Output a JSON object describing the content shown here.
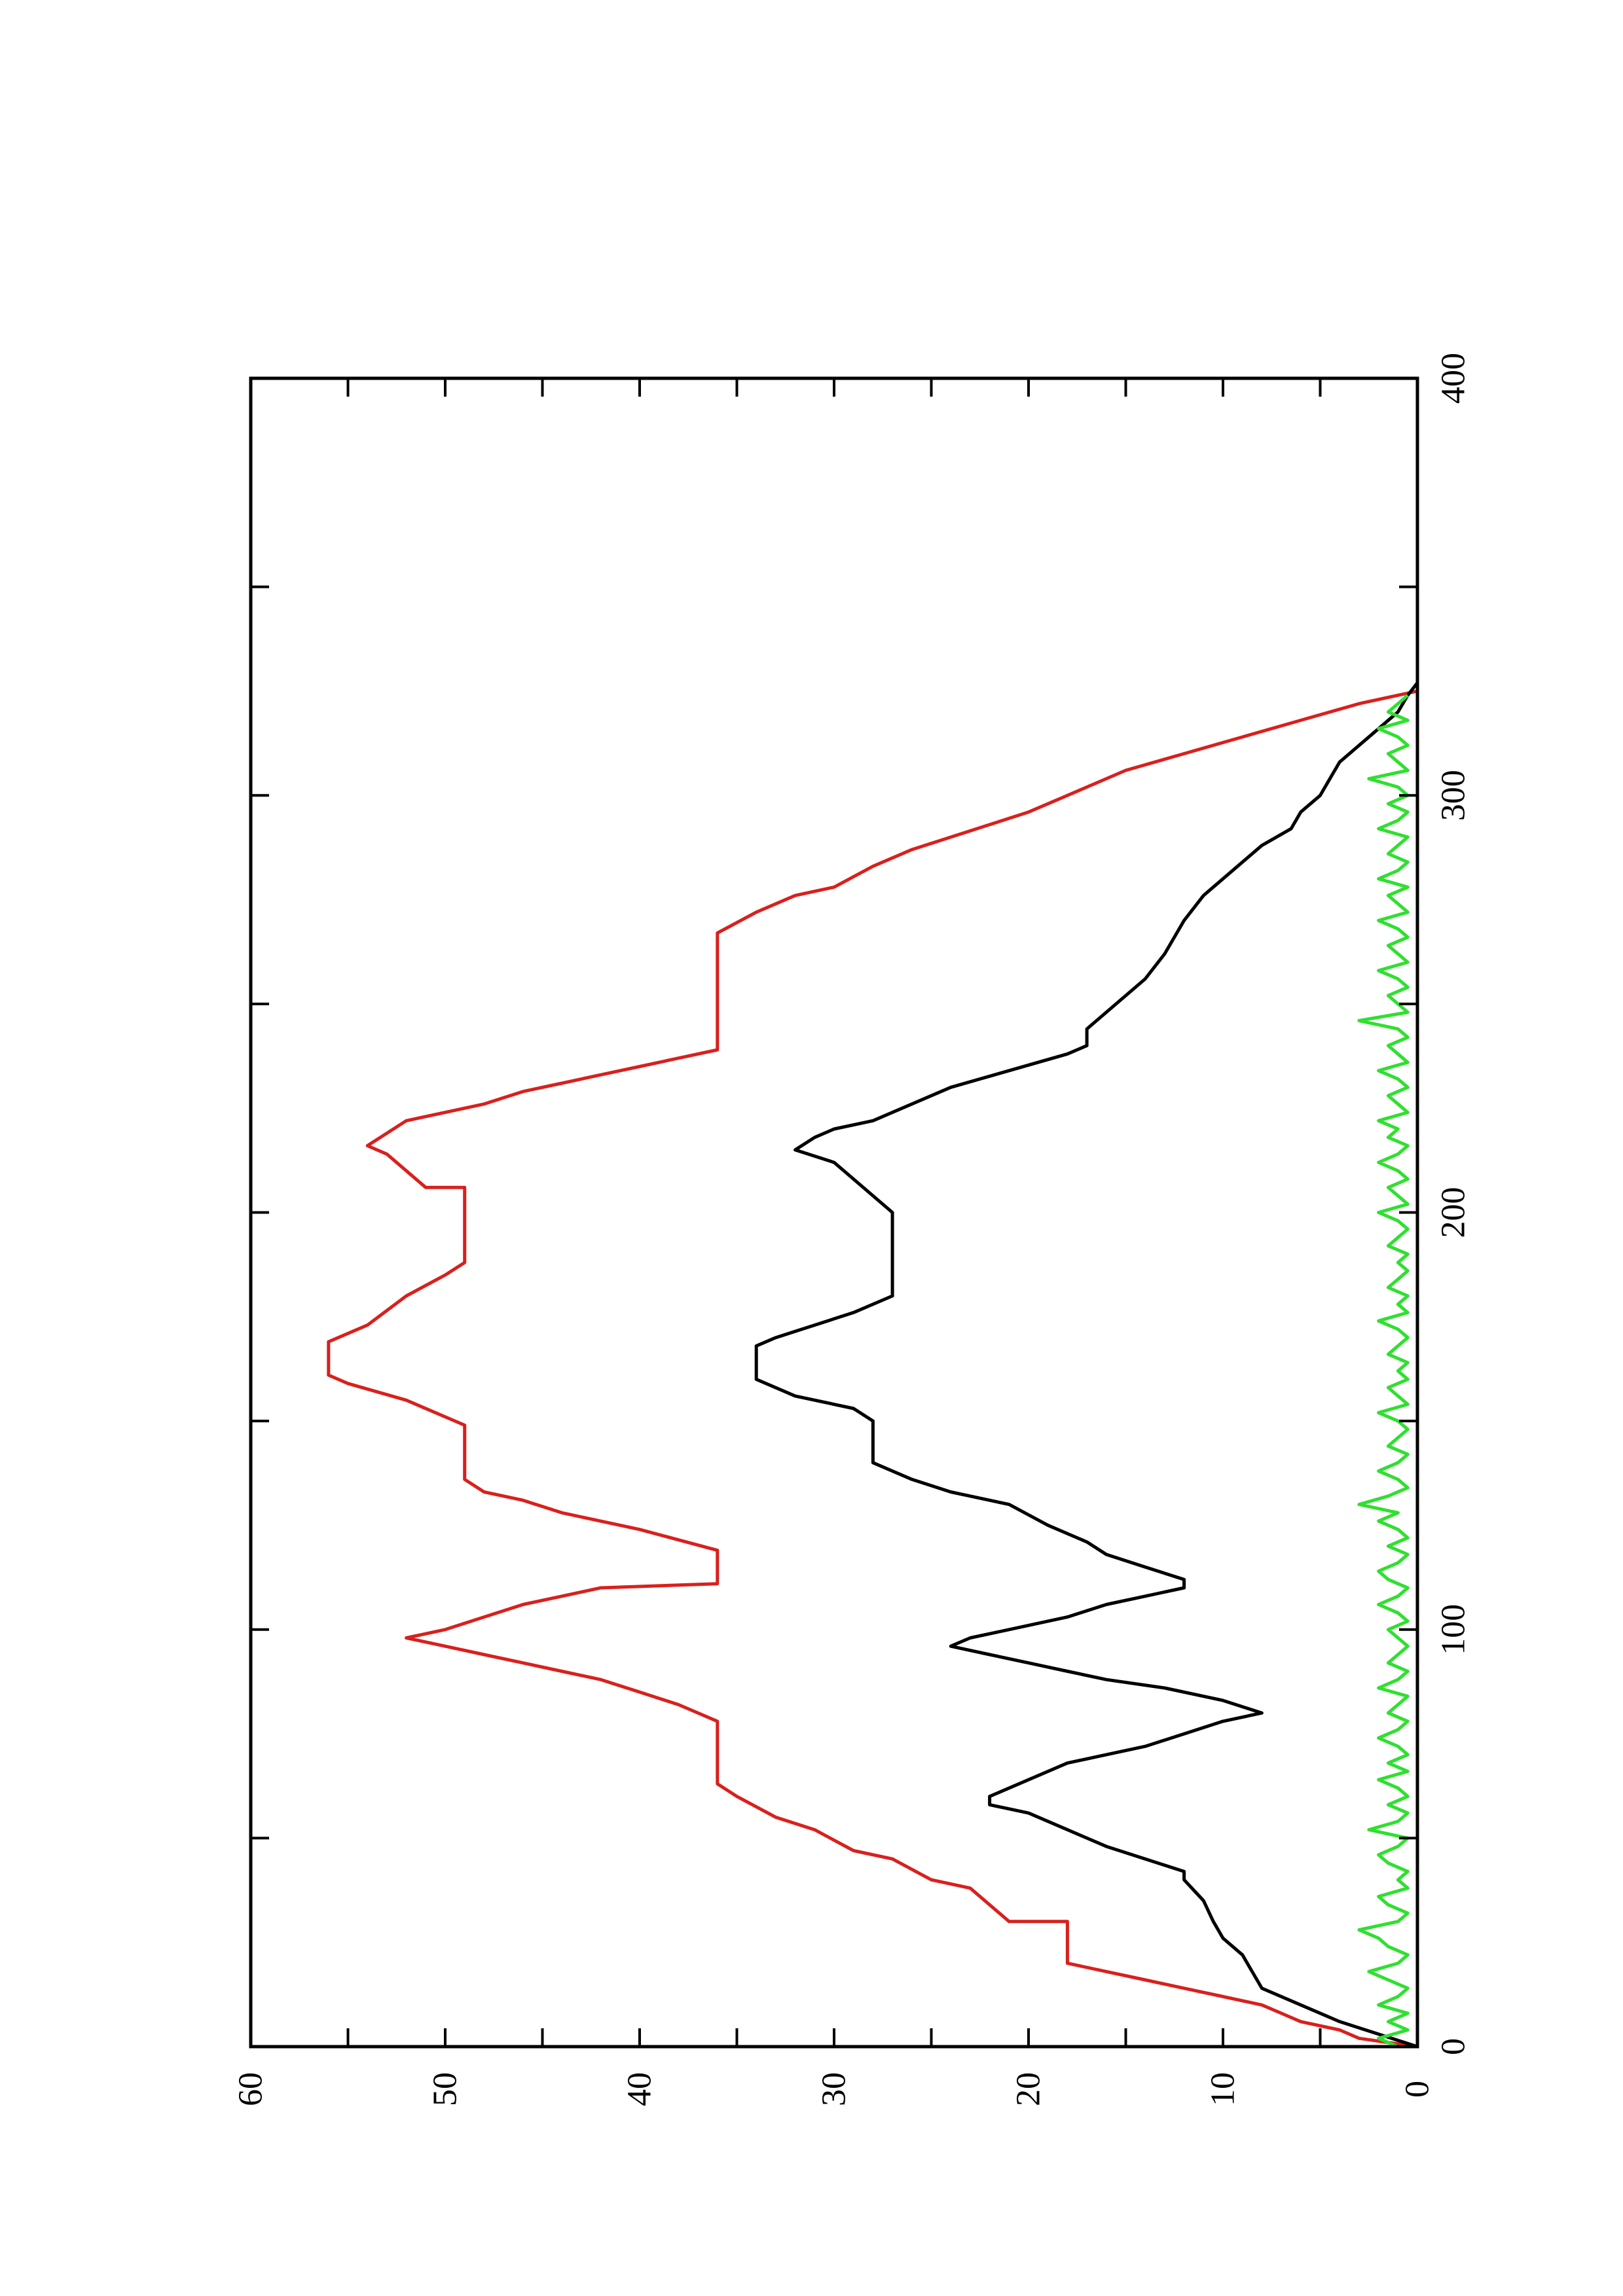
{
  "chart_data": {
    "type": "line",
    "orientation": "rotated-90-ccw",
    "title": "",
    "xlabel": "",
    "ylabel": "",
    "xlim": [
      0,
      400
    ],
    "ylim": [
      0,
      60
    ],
    "xticks": [
      0,
      100,
      200,
      300,
      400
    ],
    "yticks": [
      0,
      10,
      20,
      30,
      40,
      50,
      60
    ],
    "x_minor_step": 50,
    "y_minor_step": 5,
    "grid": false,
    "legend": "none",
    "series": [
      {
        "color": "#d9201d",
        "x": [
          0,
          2,
          4,
          6,
          8,
          10,
          12,
          14,
          16,
          18,
          20,
          22,
          22,
          30,
          30,
          38,
          40,
          45,
          47,
          52,
          55,
          60,
          63,
          66,
          68,
          70,
          72,
          74,
          76,
          78,
          78,
          82,
          85,
          88,
          90,
          92,
          94,
          96,
          98,
          100,
          103,
          106,
          108,
          110,
          111,
          111,
          119,
          119,
          124,
          128,
          131,
          133,
          136,
          138,
          140,
          141,
          141,
          149,
          149,
          155,
          159,
          161,
          161,
          169,
          169,
          173,
          180,
          185,
          188,
          192,
          192,
          206,
          206,
          210,
          214,
          216,
          216,
          222,
          224,
          226,
          229,
          231,
          233,
          235,
          237,
          239,
          239,
          267,
          267,
          272,
          276,
          278,
          283,
          287,
          290,
          293,
          296,
          300,
          300,
          306,
          310,
          314,
          318,
          322,
          325
        ],
        "y": [
          0,
          3,
          4,
          6,
          7,
          8,
          10,
          12,
          14,
          16,
          18,
          18,
          18,
          18,
          21,
          23,
          25,
          27,
          29,
          31,
          33,
          35,
          36,
          36,
          36,
          36,
          36,
          36,
          36,
          36,
          36,
          38,
          40,
          42,
          44,
          46,
          48,
          50,
          52,
          50,
          48,
          46,
          44,
          42,
          36,
          36,
          36,
          36,
          40,
          44,
          46,
          48,
          49,
          49,
          49,
          49,
          49,
          49,
          49,
          52,
          55,
          56,
          56,
          56,
          56,
          54,
          52,
          50,
          49,
          49,
          49,
          49,
          51,
          52,
          53,
          54,
          54,
          52,
          50,
          48,
          46,
          44,
          42,
          40,
          38,
          36,
          36,
          36,
          36,
          34,
          32,
          30,
          28,
          26,
          24,
          22,
          20,
          18,
          18,
          15,
          12,
          9,
          6,
          3,
          0
        ]
      },
      {
        "color": "#000000",
        "x": [
          0,
          3,
          6,
          10,
          14,
          18,
          22,
          26,
          30,
          35,
          40,
          42,
          45,
          48,
          52,
          56,
          58,
          60,
          62,
          64,
          66,
          68,
          70,
          72,
          75,
          78,
          80,
          83,
          86,
          88,
          90,
          92,
          94,
          96,
          98,
          100,
          103,
          106,
          108,
          110,
          112,
          115,
          118,
          121,
          125,
          130,
          133,
          136,
          140,
          145,
          150,
          153,
          156,
          160,
          164,
          168,
          170,
          173,
          176,
          180,
          190,
          196,
          200,
          204,
          208,
          212,
          215,
          218,
          220,
          222,
          226,
          230,
          234,
          238,
          240,
          244,
          248,
          252,
          256,
          262,
          270,
          276,
          280,
          284,
          288,
          292,
          296,
          300,
          304,
          308,
          312,
          316,
          320,
          324,
          327
        ],
        "y": [
          0,
          2,
          4,
          6,
          8,
          8.5,
          9,
          10,
          10.5,
          11,
          12,
          12,
          14,
          16,
          18,
          20,
          22,
          22,
          21,
          20,
          19,
          18,
          16,
          14,
          12,
          10,
          8,
          10,
          13,
          16,
          18,
          20,
          22,
          24,
          23,
          21,
          18,
          16,
          14,
          12,
          12,
          14,
          16,
          17,
          19,
          21,
          24,
          26,
          28,
          28,
          28,
          29,
          32,
          34,
          34,
          34,
          33,
          31,
          29,
          27,
          27,
          27,
          27,
          28,
          29,
          30,
          32,
          31,
          30,
          28,
          26,
          24,
          21,
          18,
          17,
          17,
          16,
          15,
          14,
          13,
          12,
          11,
          10,
          9,
          8,
          6.5,
          6,
          5,
          4.5,
          4,
          3,
          2,
          1,
          0.5,
          0
        ]
      },
      {
        "color": "#2fe02f",
        "x": [
          0,
          2,
          4,
          6,
          8,
          10,
          12,
          14,
          16,
          18,
          20,
          22,
          24,
          26,
          28,
          30,
          32,
          34,
          36,
          38,
          40,
          42,
          44,
          46,
          48,
          50,
          52,
          54,
          56,
          58,
          60,
          62,
          64,
          66,
          68,
          70,
          72,
          74,
          76,
          78,
          80,
          82,
          84,
          86,
          88,
          90,
          92,
          94,
          96,
          98,
          100,
          102,
          104,
          106,
          108,
          110,
          112,
          114,
          116,
          118,
          120,
          122,
          124,
          126,
          128,
          130,
          132,
          134,
          136,
          138,
          140,
          142,
          144,
          146,
          148,
          150,
          152,
          154,
          156,
          158,
          160,
          162,
          164,
          166,
          168,
          170,
          172,
          174,
          176,
          178,
          180,
          182,
          184,
          186,
          188,
          190,
          192,
          194,
          196,
          198,
          200,
          202,
          204,
          206,
          208,
          210,
          212,
          214,
          216,
          218,
          220,
          222,
          224,
          226,
          228,
          230,
          232,
          234,
          236,
          238,
          240,
          242,
          244,
          246,
          248,
          250,
          252,
          254,
          256,
          258,
          260,
          262,
          264,
          266,
          268,
          270,
          272,
          274,
          276,
          278,
          280,
          282,
          284,
          286,
          288,
          290,
          292,
          294,
          296,
          298,
          300,
          302,
          304,
          306,
          308,
          310,
          312,
          314,
          316,
          318,
          320,
          322,
          324
        ],
        "y": [
          1,
          2,
          0.5,
          1.5,
          0.5,
          2,
          1,
          0.5,
          1.5,
          2.5,
          1,
          0.5,
          1.5,
          2,
          3,
          1,
          0.5,
          1.5,
          2,
          0.5,
          1,
          0.5,
          1.5,
          2,
          1,
          0.5,
          2.5,
          1,
          0.5,
          1.5,
          0.5,
          1,
          2,
          0.5,
          1.5,
          0.5,
          1,
          2,
          1,
          0.5,
          1.5,
          1,
          0.5,
          2,
          1,
          0.5,
          1.5,
          1,
          0.5,
          1,
          1.5,
          0.5,
          1,
          2,
          1,
          0.5,
          1.5,
          2,
          1,
          0.5,
          1.5,
          0.5,
          1,
          2,
          1,
          3,
          1.5,
          0.5,
          1,
          2,
          1,
          0.5,
          1.5,
          1,
          0.5,
          1,
          2,
          0.5,
          1,
          1.5,
          0.5,
          1,
          0.5,
          1.5,
          1,
          0.5,
          1,
          2,
          0.5,
          1,
          0.5,
          1.5,
          1,
          0.5,
          1,
          0.5,
          1.5,
          1,
          0.5,
          1,
          2,
          0.5,
          1,
          1.5,
          0.5,
          1,
          2,
          1,
          0.5,
          1.5,
          1,
          2,
          0.5,
          1,
          1.5,
          0.5,
          1,
          2,
          0.5,
          1,
          1.5,
          0.5,
          1,
          3,
          0.5,
          1,
          1.5,
          0.5,
          1,
          2,
          0.5,
          1,
          1.5,
          0.5,
          1,
          2,
          0.5,
          1,
          1.5,
          0.5,
          2,
          1,
          0.5,
          1.5,
          1,
          0.5,
          2,
          1,
          0.5,
          1.5,
          0.5,
          1,
          2.5,
          0.5,
          1,
          1.5,
          0.5,
          1,
          2,
          0.5,
          1.5,
          1,
          0.5
        ]
      }
    ]
  }
}
